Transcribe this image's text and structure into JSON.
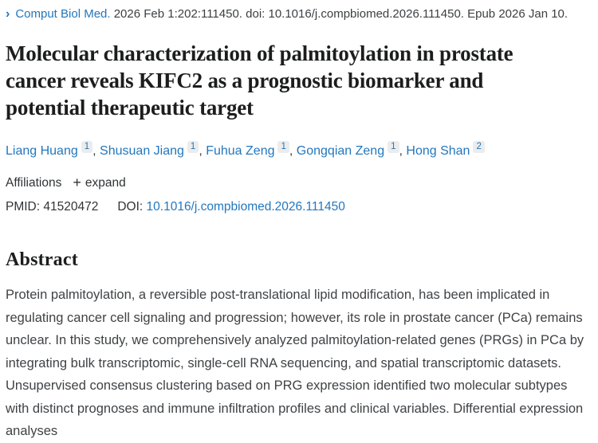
{
  "icons": {
    "chevron": "›",
    "plus": "+"
  },
  "citation": {
    "journal": "Comput Biol Med.",
    "meta": "2026 Feb 1:202:111450. doi: 10.1016/j.compbiomed.2026.111450. Epub 2026 Jan 10."
  },
  "title": "Molecular characterization of palmitoylation in prostate cancer reveals KIFC2 as a prognostic biomarker and potential therapeutic target",
  "authors": [
    {
      "name": "Liang Huang",
      "sup": "1"
    },
    {
      "name": "Shusuan Jiang",
      "sup": "1"
    },
    {
      "name": "Fuhua Zeng",
      "sup": "1"
    },
    {
      "name": "Gongqian Zeng",
      "sup": "1"
    },
    {
      "name": "Hong Shan",
      "sup": "2"
    }
  ],
  "affiliations": {
    "label": "Affiliations",
    "expand_label": "expand"
  },
  "ids": {
    "pmid_label": "PMID:",
    "pmid": "41520472",
    "doi_label": "DOI:",
    "doi": "10.1016/j.compbiomed.2026.111450"
  },
  "abstract": {
    "heading": "Abstract",
    "text": "Protein palmitoylation, a reversible post-translational lipid modification, has been implicated in regulating cancer cell signaling and progression; however, its role in prostate cancer (PCa) remains unclear. In this study, we comprehensively analyzed palmitoylation-related genes (PRGs) in PCa by integrating bulk transcriptomic, single-cell RNA sequencing, and spatial transcriptomic datasets. Unsupervised consensus clustering based on PRG expression identified two molecular subtypes with distinct prognoses and immune infiltration profiles and clinical variables. Differential expression analyses"
  },
  "colors": {
    "link_blue": "#2377bd",
    "title_text": "#1c1d1e",
    "body_text": "#3f4245",
    "sup_badge_bg": "#ececec",
    "sup_badge_text": "#38546d"
  }
}
